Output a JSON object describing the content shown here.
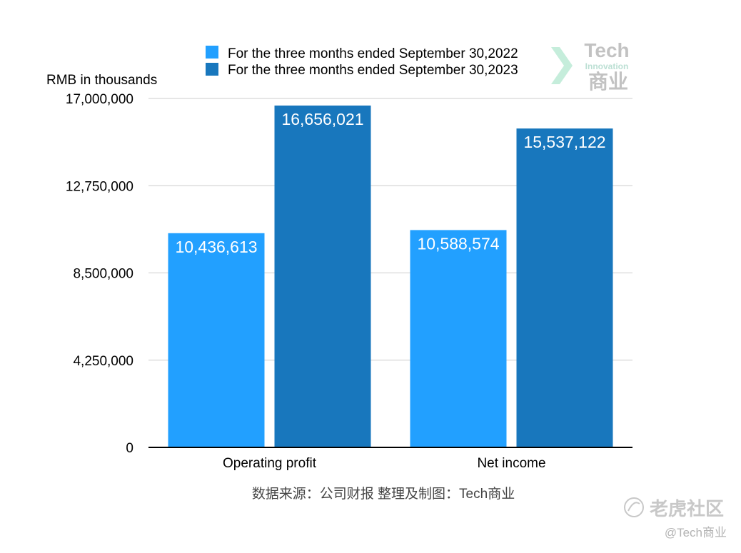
{
  "chart_data": {
    "type": "bar",
    "ylabel": "RMB in thousands",
    "categories": [
      "Operating profit",
      "Net income"
    ],
    "series": [
      {
        "name": "For the three months ended September 30,2022",
        "color": "#22a0ff",
        "values": [
          10436613,
          10588574
        ],
        "labels": [
          "10,436,613",
          "10,588,574"
        ]
      },
      {
        "name": "For the three months ended September 30,2023",
        "color": "#1877bd",
        "values": [
          16656021,
          15537122
        ],
        "labels": [
          "16,656,021",
          "15,537,122"
        ]
      }
    ],
    "ylim": [
      0,
      17000000
    ],
    "yticks": [
      0,
      4250000,
      8500000,
      12750000,
      17000000
    ],
    "ytick_labels": [
      "0",
      "4,250,000",
      "8,500,000",
      "12,750,000",
      "17,000,000"
    ],
    "grid": true,
    "legend_position": "top"
  },
  "source_note": "数据来源：公司财报 整理及制图：Tech商业",
  "logo": {
    "line1": "Tech",
    "line2": "Innovation",
    "line3": "商业"
  },
  "watermark": {
    "community": "老虎社区",
    "handle": "@Tech商业"
  },
  "colors": {
    "grid": "#cccccc",
    "axis": "#000000",
    "text": "#000000",
    "bar_label": "#ffffff",
    "source_text": "#444444",
    "watermark": "#c8c8c8"
  }
}
